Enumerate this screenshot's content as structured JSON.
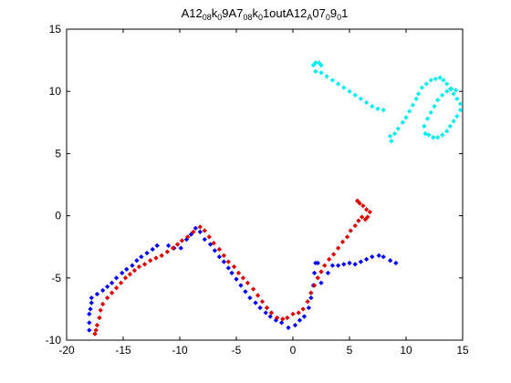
{
  "chart_data": {
    "type": "scatter",
    "title_segments": [
      {
        "t": "A12",
        "sub": false
      },
      {
        "t": "08",
        "sub": true
      },
      {
        "t": "k",
        "sub": false
      },
      {
        "t": "0",
        "sub": true
      },
      {
        "t": "9A7",
        "sub": false
      },
      {
        "t": "08",
        "sub": true
      },
      {
        "t": "k",
        "sub": false
      },
      {
        "t": "0",
        "sub": true
      },
      {
        "t": "1outA12",
        "sub": false
      },
      {
        "t": "A",
        "sub": true
      },
      {
        "t": "07",
        "sub": false
      },
      {
        "t": "0",
        "sub": true
      },
      {
        "t": "9",
        "sub": false
      },
      {
        "t": "0",
        "sub": true
      },
      {
        "t": "1",
        "sub": false
      }
    ],
    "xlim": [
      -20,
      15
    ],
    "ylim": [
      -10,
      15
    ],
    "xticks": [
      "-20",
      "-15",
      "-10",
      "-5",
      "0",
      "5",
      "10",
      "15"
    ],
    "yticks": [
      "-10",
      "-5",
      "0",
      "5",
      "10",
      "15"
    ],
    "grid": false,
    "series": [
      {
        "color": "#0000ff",
        "points": [
          [
            -18.0,
            -9.2
          ],
          [
            -18.0,
            -8.6
          ],
          [
            -18.0,
            -7.9
          ],
          [
            -17.9,
            -7.5
          ],
          [
            -17.8,
            -7.0
          ],
          [
            -17.8,
            -6.6
          ],
          [
            -17.3,
            -6.3
          ],
          [
            -16.8,
            -6.0
          ],
          [
            -16.4,
            -5.7
          ],
          [
            -16.0,
            -5.4
          ],
          [
            -15.6,
            -5.0
          ],
          [
            -15.1,
            -4.6
          ],
          [
            -14.7,
            -4.3
          ],
          [
            -14.2,
            -4.0
          ],
          [
            -13.8,
            -3.6
          ],
          [
            -13.4,
            -3.3
          ],
          [
            -12.9,
            -3.0
          ],
          [
            -12.4,
            -2.7
          ],
          [
            -12.0,
            -2.4
          ],
          [
            -11.0,
            -2.4
          ],
          [
            -10.5,
            -2.6
          ],
          [
            -9.9,
            -2.6
          ],
          [
            -9.4,
            -1.9
          ],
          [
            -9.0,
            -1.5
          ],
          [
            -8.6,
            -1.0
          ],
          [
            -8.2,
            -1.3
          ],
          [
            -7.8,
            -1.9
          ],
          [
            -7.3,
            -2.3
          ],
          [
            -6.9,
            -2.8
          ],
          [
            -6.5,
            -3.3
          ],
          [
            -6.1,
            -3.7
          ],
          [
            -5.7,
            -4.2
          ],
          [
            -5.4,
            -4.6
          ],
          [
            -5.0,
            -5.1
          ],
          [
            -4.6,
            -5.6
          ],
          [
            -4.2,
            -6.1
          ],
          [
            -3.8,
            -6.6
          ],
          [
            -3.3,
            -7.0
          ],
          [
            -2.9,
            -7.4
          ],
          [
            -2.4,
            -7.8
          ],
          [
            -2.0,
            -8.1
          ],
          [
            -1.5,
            -8.4
          ],
          [
            -1.0,
            -8.6
          ],
          [
            -0.4,
            -9.0
          ],
          [
            0.2,
            -8.8
          ],
          [
            0.6,
            -8.4
          ],
          [
            1.0,
            -8.1
          ],
          [
            1.4,
            -7.4
          ],
          [
            1.6,
            -6.6
          ],
          [
            1.8,
            -5.6
          ],
          [
            1.9,
            -4.6
          ],
          [
            2.0,
            -3.8
          ],
          [
            2.2,
            -3.8
          ],
          [
            2.5,
            -5.4
          ],
          [
            3.1,
            -4.6
          ],
          [
            3.5,
            -4.0
          ],
          [
            4.0,
            -4.0
          ],
          [
            4.5,
            -3.9
          ],
          [
            5.0,
            -3.8
          ],
          [
            5.5,
            -3.9
          ],
          [
            6.0,
            -3.7
          ],
          [
            6.5,
            -3.5
          ],
          [
            7.0,
            -3.3
          ],
          [
            7.6,
            -3.2
          ],
          [
            8.0,
            -3.3
          ],
          [
            8.6,
            -3.6
          ],
          [
            9.1,
            -3.8
          ]
        ]
      },
      {
        "color": "#dd0000",
        "points": [
          [
            -17.5,
            -9.5
          ],
          [
            -17.4,
            -9.2
          ],
          [
            -17.3,
            -8.8
          ],
          [
            -17.1,
            -8.2
          ],
          [
            -17.0,
            -7.6
          ],
          [
            -16.8,
            -7.1
          ],
          [
            -16.4,
            -6.6
          ],
          [
            -16.0,
            -6.2
          ],
          [
            -15.6,
            -5.8
          ],
          [
            -15.2,
            -5.4
          ],
          [
            -14.8,
            -5.0
          ],
          [
            -14.4,
            -4.7
          ],
          [
            -14.0,
            -4.4
          ],
          [
            -13.6,
            -4.1
          ],
          [
            -13.1,
            -3.9
          ],
          [
            -12.6,
            -3.6
          ],
          [
            -12.1,
            -3.4
          ],
          [
            -11.6,
            -3.2
          ],
          [
            -11.1,
            -2.9
          ],
          [
            -10.6,
            -2.6
          ],
          [
            -10.2,
            -2.3
          ],
          [
            -9.8,
            -2.0
          ],
          [
            -9.3,
            -1.7
          ],
          [
            -8.8,
            -1.3
          ],
          [
            -8.2,
            -0.9
          ],
          [
            -7.8,
            -1.2
          ],
          [
            -7.4,
            -1.7
          ],
          [
            -7.0,
            -2.2
          ],
          [
            -6.5,
            -2.7
          ],
          [
            -6.1,
            -3.2
          ],
          [
            -5.7,
            -3.7
          ],
          [
            -5.2,
            -4.1
          ],
          [
            -4.8,
            -4.6
          ],
          [
            -4.4,
            -5.0
          ],
          [
            -4.0,
            -5.4
          ],
          [
            -3.5,
            -5.9
          ],
          [
            -3.1,
            -6.4
          ],
          [
            -2.7,
            -6.9
          ],
          [
            -2.3,
            -7.4
          ],
          [
            -1.9,
            -7.8
          ],
          [
            -1.4,
            -8.2
          ],
          [
            -0.9,
            -8.3
          ],
          [
            -0.5,
            -8.2
          ],
          [
            0.0,
            -7.9
          ],
          [
            0.5,
            -7.8
          ],
          [
            0.9,
            -7.5
          ],
          [
            1.3,
            -6.9
          ],
          [
            1.6,
            -6.2
          ],
          [
            1.9,
            -5.6
          ],
          [
            2.2,
            -5.0
          ],
          [
            2.5,
            -4.5
          ],
          [
            2.8,
            -4.0
          ],
          [
            3.2,
            -3.5
          ],
          [
            3.6,
            -3.1
          ],
          [
            4.0,
            -2.6
          ],
          [
            4.4,
            -2.1
          ],
          [
            4.8,
            -1.7
          ],
          [
            5.1,
            -1.2
          ],
          [
            5.5,
            -0.8
          ],
          [
            5.8,
            -0.4
          ],
          [
            6.1,
            -0.1
          ],
          [
            6.4,
            -0.3
          ],
          [
            6.6,
            -0.1
          ],
          [
            6.8,
            0.3
          ],
          [
            6.5,
            0.5
          ],
          [
            6.2,
            0.8
          ],
          [
            5.9,
            1.0
          ],
          [
            5.7,
            1.2
          ]
        ]
      },
      {
        "color": "#00eeee",
        "points": [
          [
            1.8,
            12.1
          ],
          [
            2.0,
            12.3
          ],
          [
            2.3,
            12.3
          ],
          [
            2.5,
            12.1
          ],
          [
            2.0,
            11.6
          ],
          [
            2.5,
            11.5
          ],
          [
            3.0,
            11.2
          ],
          [
            3.5,
            10.9
          ],
          [
            4.0,
            10.6
          ],
          [
            4.5,
            10.3
          ],
          [
            5.0,
            10.0
          ],
          [
            5.5,
            9.7
          ],
          [
            6.0,
            9.4
          ],
          [
            6.5,
            9.1
          ],
          [
            7.0,
            8.8
          ],
          [
            7.5,
            8.6
          ],
          [
            8.0,
            8.5
          ],
          [
            8.6,
            6.4
          ],
          [
            8.7,
            6.0
          ],
          [
            9.0,
            6.6
          ],
          [
            9.3,
            7.0
          ],
          [
            9.7,
            7.5
          ],
          [
            10.0,
            7.9
          ],
          [
            10.3,
            8.4
          ],
          [
            10.6,
            8.9
          ],
          [
            10.9,
            9.4
          ],
          [
            11.1,
            9.8
          ],
          [
            11.4,
            10.3
          ],
          [
            11.8,
            10.6
          ],
          [
            12.2,
            10.9
          ],
          [
            12.6,
            11.0
          ],
          [
            13.0,
            11.1
          ],
          [
            13.3,
            10.9
          ],
          [
            13.6,
            10.6
          ],
          [
            13.9,
            10.2
          ],
          [
            14.2,
            9.8
          ],
          [
            14.5,
            9.4
          ],
          [
            14.8,
            9.0
          ],
          [
            14.8,
            8.5
          ],
          [
            14.5,
            8.0
          ],
          [
            14.2,
            7.6
          ],
          [
            13.9,
            7.2
          ],
          [
            13.6,
            6.8
          ],
          [
            13.2,
            6.5
          ],
          [
            12.8,
            6.3
          ],
          [
            12.4,
            6.3
          ],
          [
            12.0,
            6.5
          ],
          [
            11.7,
            6.6
          ],
          [
            11.6,
            7.2
          ],
          [
            11.9,
            7.8
          ],
          [
            12.2,
            8.3
          ],
          [
            12.5,
            8.8
          ],
          [
            12.8,
            9.3
          ],
          [
            13.2,
            9.7
          ],
          [
            13.6,
            10.0
          ],
          [
            14.0,
            10.2
          ],
          [
            14.4,
            10.1
          ]
        ]
      }
    ]
  }
}
